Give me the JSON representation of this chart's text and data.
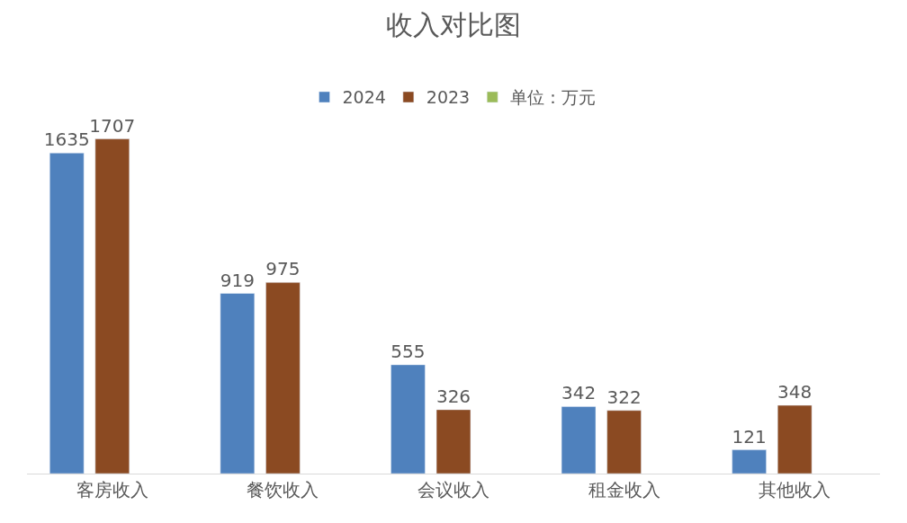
{
  "chart_data": {
    "type": "bar",
    "title": "收入对比图",
    "categories": [
      "客房收入",
      "餐饮收入",
      "会议收入",
      "租金收入",
      "其他收入"
    ],
    "series": [
      {
        "name": "2024",
        "color": "#4f81bd",
        "values": [
          1635,
          919,
          555,
          342,
          121
        ]
      },
      {
        "name": "2023",
        "color": "#8b4a22",
        "values": [
          1707,
          975,
          326,
          322,
          348
        ]
      },
      {
        "name": "单位：万元",
        "color": "#9bbb59",
        "values": [
          null,
          null,
          null,
          null,
          null
        ]
      }
    ],
    "data_labels": true,
    "legend": "top"
  }
}
